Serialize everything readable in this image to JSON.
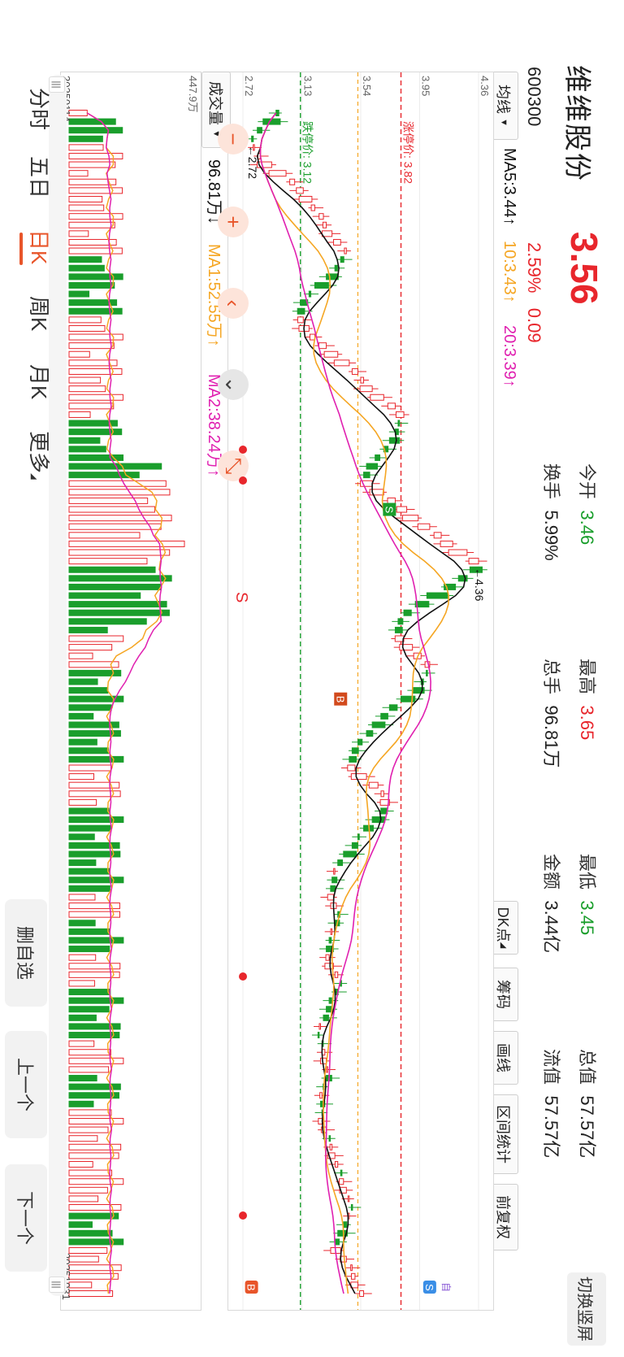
{
  "header": {
    "name": "维维股份",
    "code": "600300",
    "price": "3.56",
    "change_pct": "2.59%",
    "change_amt": "0.09",
    "switch_label": "切换竖屏"
  },
  "stats": [
    {
      "label": "今开",
      "value": "3.46",
      "color": "green"
    },
    {
      "label": "最高",
      "value": "3.65",
      "color": "red"
    },
    {
      "label": "最低",
      "value": "3.45",
      "color": "green"
    },
    {
      "label": "总值",
      "value": "57.57亿",
      "color": "dark"
    },
    {
      "label": "换手",
      "value": "5.99%",
      "color": "dark"
    },
    {
      "label": "总手",
      "value": "96.81万",
      "color": "dark"
    },
    {
      "label": "金额",
      "value": "3.44亿",
      "color": "dark"
    },
    {
      "label": "流值",
      "value": "57.57亿",
      "color": "dark"
    }
  ],
  "toolbar": {
    "ma_select": "均线",
    "ma5": "MA5:3.44↑",
    "ma10": "10:3.43↑",
    "ma20": "20:3.39↑",
    "buttons": [
      "DK点",
      "筹码",
      "画线",
      "区间统计",
      "前复权"
    ]
  },
  "price_chart": {
    "y_ticks": [
      "4.36",
      "3.95",
      "3.54",
      "3.13",
      "2.72"
    ],
    "limit_up_label": "涨停价: 3.82",
    "limit_down_label": "跌停价: 3.12",
    "max_label": "←4.36",
    "min_label": "←2.72",
    "s_marker": "S",
    "b_marker": "B",
    "dk_s": "S",
    "dk_b": "B",
    "self_marker": "自"
  },
  "volume": {
    "select": "成交量",
    "value": "96.81万↓",
    "ma1": "MA1:52.55万↑",
    "ma2": "MA2:38.24万↑",
    "y_max": "447.9万",
    "date_start": "20250114",
    "date_end": "20251031"
  },
  "controls": {
    "minus": "−",
    "plus": "+",
    "prev": "‹",
    "down": "⌄",
    "s_label": "S"
  },
  "tabs": [
    "分时",
    "五日",
    "日K",
    "周K",
    "月K",
    "更多"
  ],
  "active_tab": "日K",
  "side_buttons": [
    "删自选",
    "上一个",
    "下一个"
  ],
  "chart_data": {
    "type": "candlestick",
    "price_ylim": [
      2.72,
      4.36
    ],
    "limit_up": 3.82,
    "limit_down": 3.12,
    "date_range": [
      "20250114",
      "20251031"
    ],
    "price_series": [
      2.95,
      2.86,
      2.82,
      2.78,
      2.8,
      2.84,
      2.92,
      3.02,
      3.08,
      3.14,
      3.2,
      3.22,
      3.28,
      3.3,
      3.34,
      3.4,
      3.44,
      3.4,
      3.36,
      3.3,
      3.22,
      3.18,
      3.12,
      3.1,
      3.14,
      3.18,
      3.22,
      3.3,
      3.38,
      3.46,
      3.52,
      3.56,
      3.62,
      3.7,
      3.78,
      3.84,
      3.8,
      3.78,
      3.74,
      3.7,
      3.64,
      3.58,
      3.56,
      3.62,
      3.7,
      3.78,
      3.86,
      3.94,
      4.02,
      4.1,
      4.18,
      4.28,
      4.36,
      4.3,
      4.22,
      4.12,
      4.0,
      3.92,
      3.84,
      3.8,
      3.78,
      3.84,
      3.9,
      3.96,
      4.02,
      4.0,
      3.96,
      3.9,
      3.82,
      3.74,
      3.68,
      3.62,
      3.58,
      3.52,
      3.48,
      3.46,
      3.5,
      3.58,
      3.66,
      3.7,
      3.74,
      3.68,
      3.62,
      3.56,
      3.52,
      3.48,
      3.42,
      3.38,
      3.36,
      3.34,
      3.33,
      3.35,
      3.37,
      3.38,
      3.36,
      3.34,
      3.32,
      3.3,
      3.32,
      3.35,
      3.38,
      3.4,
      3.36,
      3.32,
      3.3,
      3.28,
      3.26,
      3.25,
      3.27,
      3.29,
      3.3,
      3.31,
      3.3,
      3.28,
      3.27,
      3.26,
      3.27,
      3.28,
      3.3,
      3.32,
      3.34,
      3.36,
      3.38,
      3.4,
      3.42,
      3.44,
      3.46,
      3.48,
      3.46,
      3.42,
      3.38,
      3.36,
      3.4,
      3.44,
      3.48,
      3.5,
      3.52,
      3.56
    ],
    "volume_max_label": "447.9万",
    "ma_values": {
      "MA5": 3.44,
      "MA10": 3.43,
      "MA20": 3.39
    }
  },
  "colors": {
    "up": "#e8262c",
    "down": "#1a9e2c",
    "ma5": "#111111",
    "ma10": "#f5a623",
    "ma20": "#e020b0",
    "accent": "#e8552a"
  }
}
